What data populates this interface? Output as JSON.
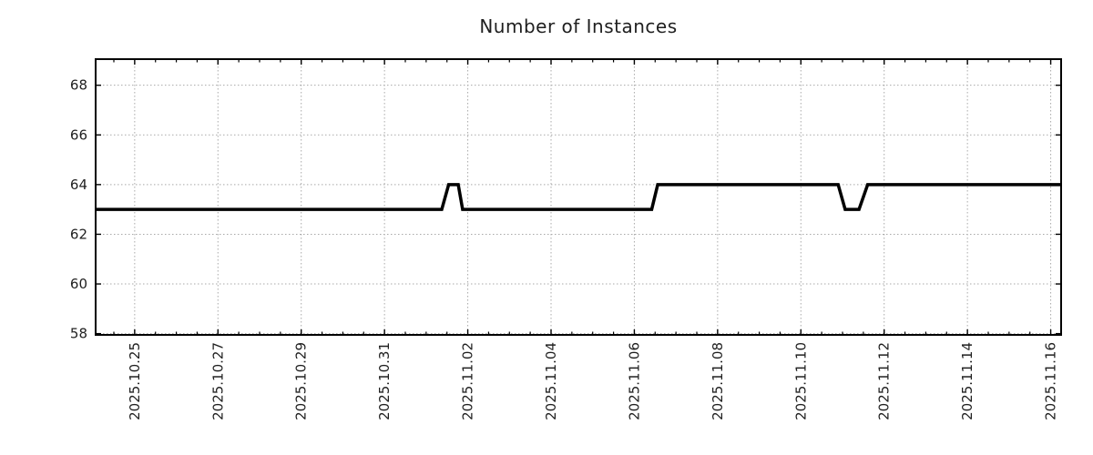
{
  "chart_data": {
    "type": "line",
    "title": "Number of Instances",
    "xlabel": "",
    "ylabel": "",
    "legend": "none",
    "grid": "dotted",
    "xlim": [
      "2025-10-24 01:30",
      "2025-11-16 06:00"
    ],
    "ylim": [
      57.95,
      69.05
    ],
    "y_ticks": [
      58,
      60,
      62,
      64,
      66,
      68
    ],
    "x_ticks": [
      {
        "label": "2025.10.25",
        "t": "2025-10-25 00:00"
      },
      {
        "label": "2025.10.27",
        "t": "2025-10-27 00:00"
      },
      {
        "label": "2025.10.29",
        "t": "2025-10-29 00:00"
      },
      {
        "label": "2025.10.31",
        "t": "2025-10-31 00:00"
      },
      {
        "label": "2025.11.02",
        "t": "2025-11-02 00:00"
      },
      {
        "label": "2025.11.04",
        "t": "2025-11-04 00:00"
      },
      {
        "label": "2025.11.06",
        "t": "2025-11-06 00:00"
      },
      {
        "label": "2025.11.08",
        "t": "2025-11-08 00:00"
      },
      {
        "label": "2025.11.10",
        "t": "2025-11-10 00:00"
      },
      {
        "label": "2025.11.12",
        "t": "2025-11-12 00:00"
      },
      {
        "label": "2025.11.14",
        "t": "2025-11-14 00:00"
      },
      {
        "label": "2025.11.16",
        "t": "2025-11-16 00:00"
      }
    ],
    "x_minor_interval_days": 0.5,
    "series": [
      {
        "name": "Number of Instances",
        "color": "#000000",
        "line_width": 3.5,
        "points": [
          [
            "2025-10-24 01:30",
            63
          ],
          [
            "2025-11-01 09:00",
            63
          ],
          [
            "2025-11-01 13:00",
            64
          ],
          [
            "2025-11-01 18:30",
            64
          ],
          [
            "2025-11-01 21:00",
            63
          ],
          [
            "2025-11-06 10:00",
            63
          ],
          [
            "2025-11-06 13:30",
            64
          ],
          [
            "2025-11-10 21:30",
            64
          ],
          [
            "2025-11-11 01:30",
            63
          ],
          [
            "2025-11-11 09:30",
            63
          ],
          [
            "2025-11-11 14:30",
            64
          ],
          [
            "2025-11-16 06:00",
            64
          ]
        ]
      }
    ],
    "colors": {
      "line": "#000000",
      "grid": "#a9a9a9",
      "border": "#000000",
      "text": "#1f1f1f",
      "background": "#ffffff"
    }
  }
}
